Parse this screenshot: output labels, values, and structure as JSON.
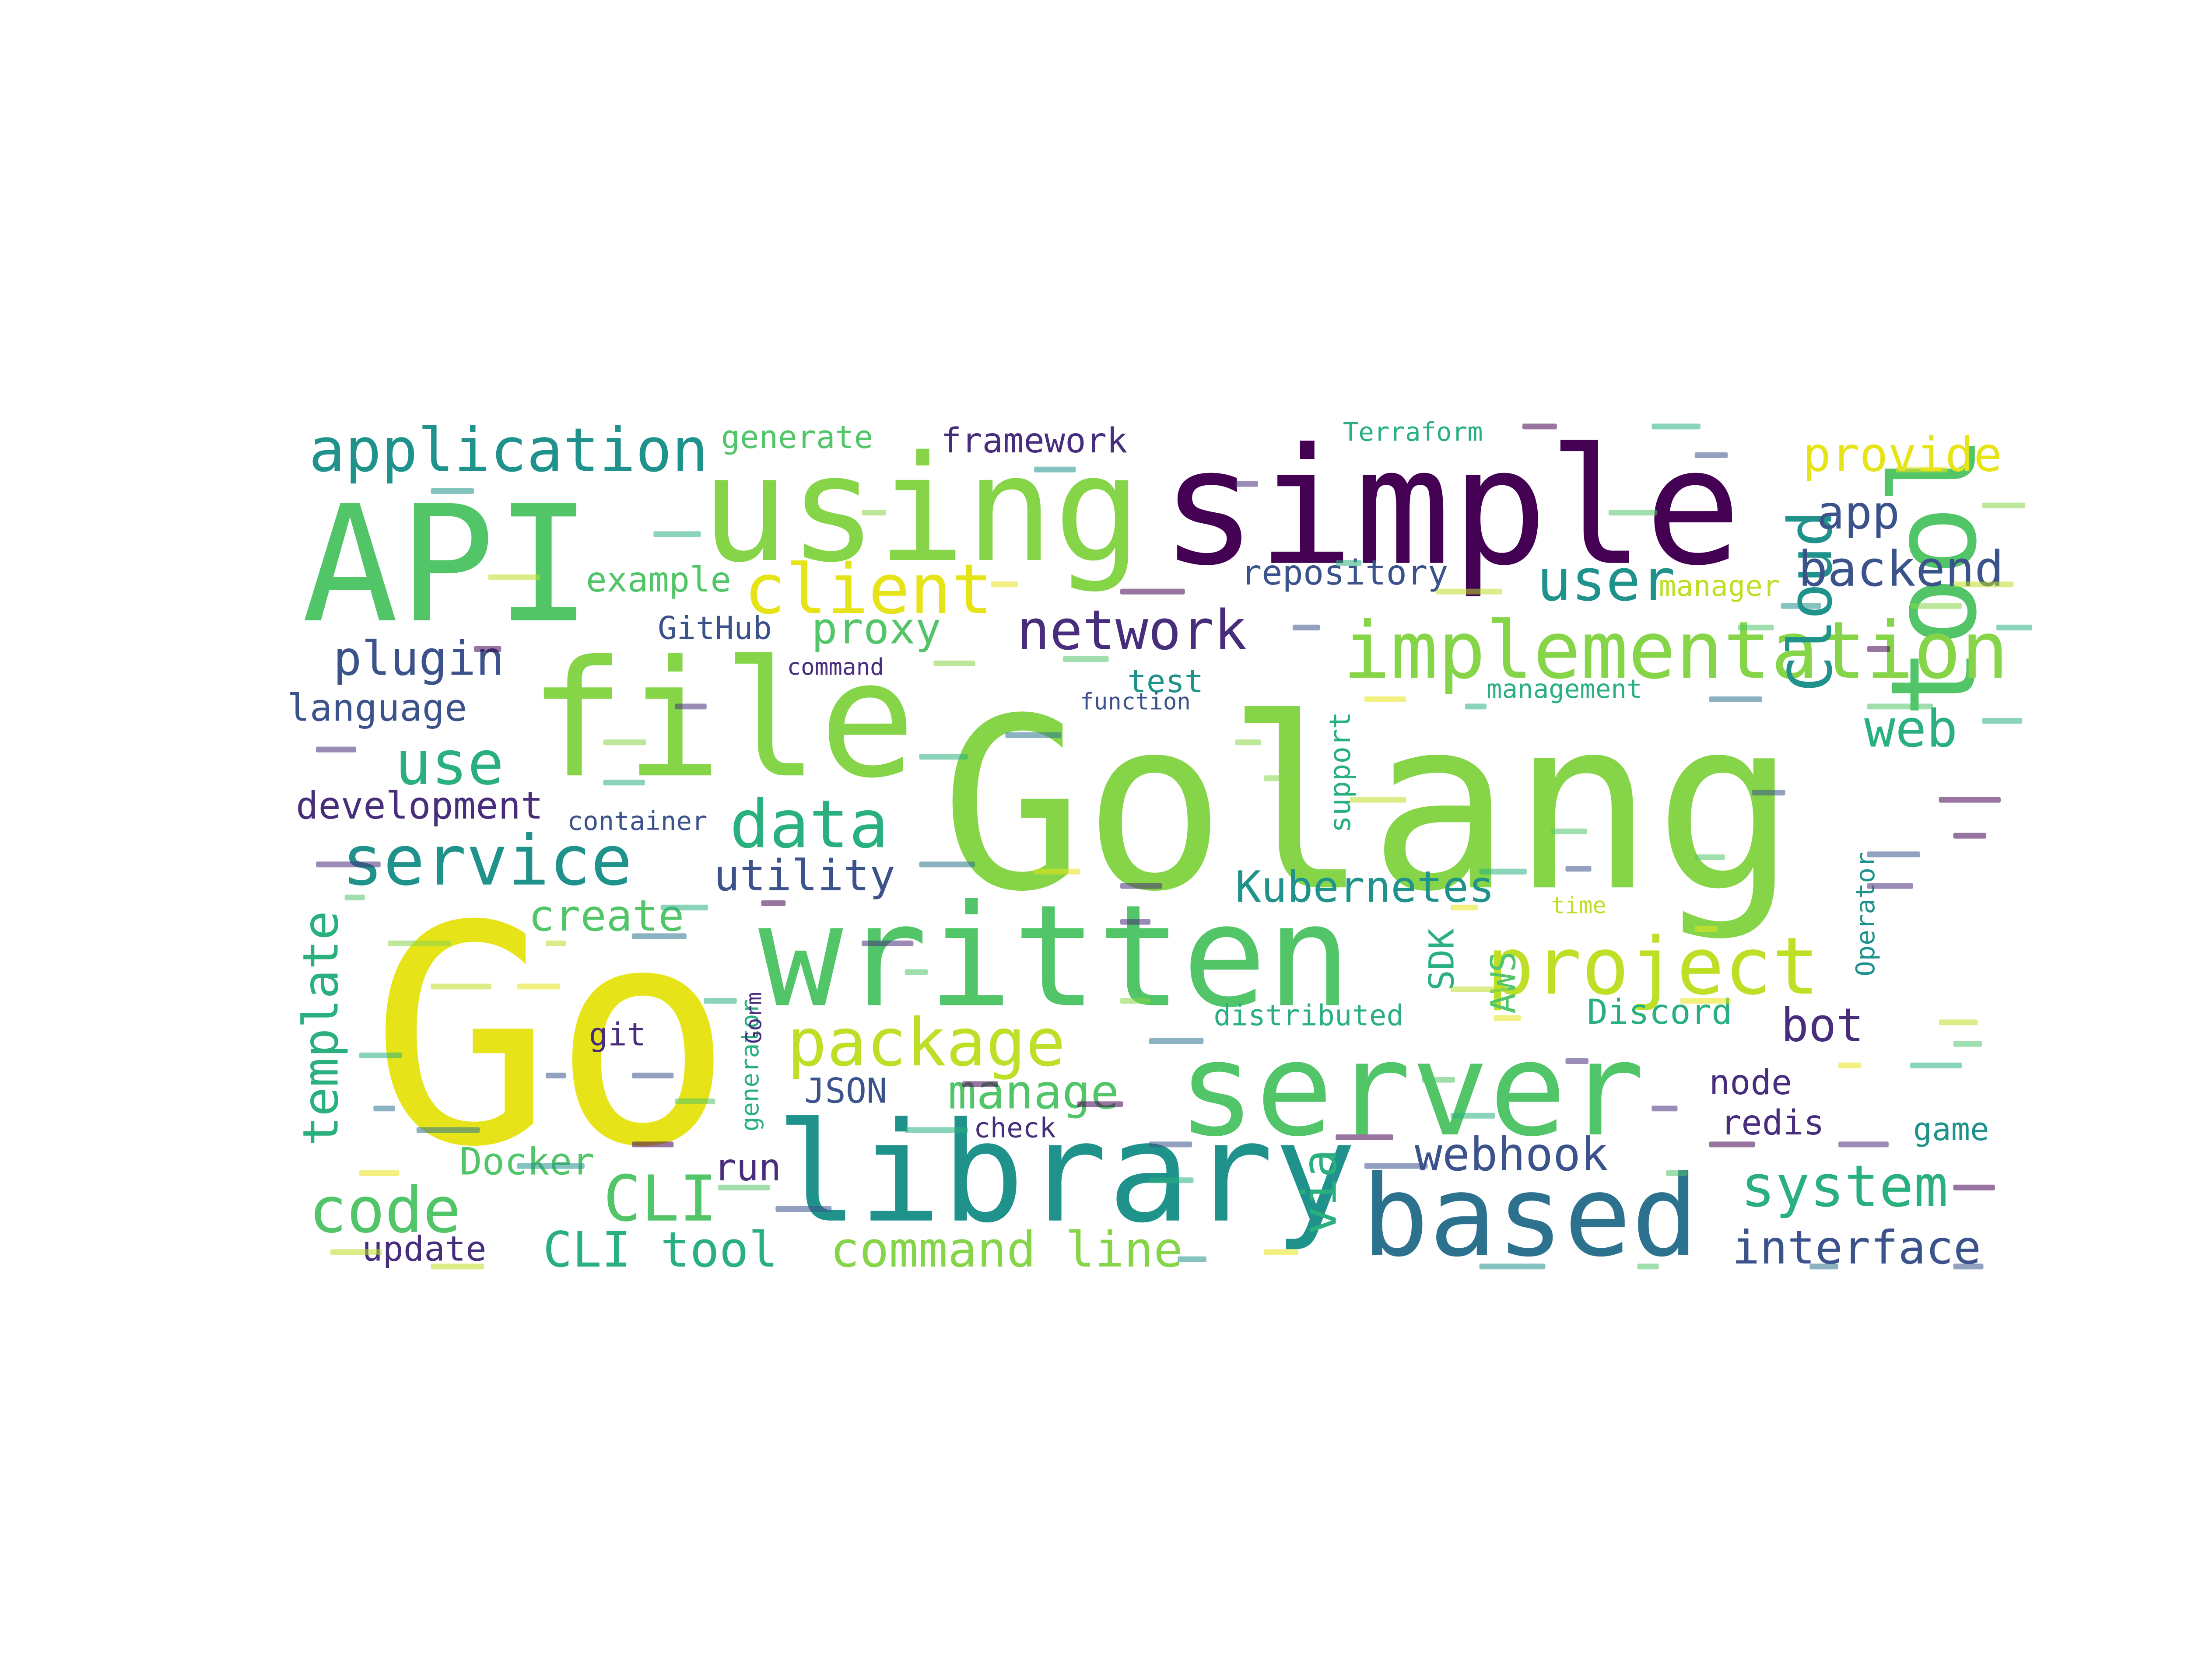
{
  "cloud": {
    "palette": {
      "yellow": "#e6e419",
      "yellowgreen": "#bddf26",
      "lightgreen": "#86d549",
      "green": "#52c569",
      "seagreen": "#2ab07f",
      "teal": "#20928c",
      "slate": "#2c728e",
      "blue": "#3b528b",
      "indigo": "#472d7b",
      "purple": "#440154"
    },
    "words": [
      {
        "text": "Golang",
        "color": "lightgreen"
      },
      {
        "text": "Go",
        "color": "yellow"
      },
      {
        "text": "simple",
        "color": "purple"
      },
      {
        "text": "using",
        "color": "lightgreen"
      },
      {
        "text": "API",
        "color": "green"
      },
      {
        "text": "file",
        "color": "lightgreen"
      },
      {
        "text": "written",
        "color": "green"
      },
      {
        "text": "server",
        "color": "green"
      },
      {
        "text": "library",
        "color": "teal"
      },
      {
        "text": "tool",
        "color": "green"
      },
      {
        "text": "based",
        "color": "slate"
      },
      {
        "text": "implementation",
        "color": "lightgreen"
      },
      {
        "text": "project",
        "color": "yellowgreen"
      },
      {
        "text": "client",
        "color": "yellow"
      },
      {
        "text": "package",
        "color": "yellowgreen"
      },
      {
        "text": "data",
        "color": "seagreen"
      },
      {
        "text": "service",
        "color": "teal"
      },
      {
        "text": "application",
        "color": "teal"
      },
      {
        "text": "network",
        "color": "indigo"
      },
      {
        "text": "Cloud",
        "color": "teal"
      },
      {
        "text": "code",
        "color": "green"
      },
      {
        "text": "CLI",
        "color": "green"
      },
      {
        "text": "system",
        "color": "seagreen"
      },
      {
        "text": "use",
        "color": "seagreen"
      },
      {
        "text": "plugin",
        "color": "blue"
      },
      {
        "text": "user",
        "color": "teal"
      },
      {
        "text": "backend",
        "color": "blue"
      },
      {
        "text": "provide",
        "color": "yellow"
      },
      {
        "text": "app",
        "color": "blue"
      },
      {
        "text": "web",
        "color": "seagreen"
      },
      {
        "text": "Kubernetes",
        "color": "teal"
      },
      {
        "text": "utility",
        "color": "blue"
      },
      {
        "text": "proxy",
        "color": "green"
      },
      {
        "text": "create",
        "color": "green"
      },
      {
        "text": "manage",
        "color": "green"
      },
      {
        "text": "CLI tool",
        "color": "seagreen"
      },
      {
        "text": "command line",
        "color": "lightgreen"
      },
      {
        "text": "interface",
        "color": "blue"
      },
      {
        "text": "webhook",
        "color": "blue"
      },
      {
        "text": "template",
        "color": "seagreen"
      },
      {
        "text": "bot",
        "color": "indigo"
      },
      {
        "text": "via",
        "color": "seagreen"
      },
      {
        "text": "language",
        "color": "blue"
      },
      {
        "text": "development",
        "color": "indigo"
      },
      {
        "text": "example",
        "color": "green"
      },
      {
        "text": "GitHub",
        "color": "blue"
      },
      {
        "text": "repository",
        "color": "blue"
      },
      {
        "text": "framework",
        "color": "indigo"
      },
      {
        "text": "generate",
        "color": "green"
      },
      {
        "text": "Terraform",
        "color": "seagreen"
      },
      {
        "text": "Discord",
        "color": "seagreen"
      },
      {
        "text": "AWS",
        "color": "green"
      },
      {
        "text": "SDK",
        "color": "seagreen"
      },
      {
        "text": "Operator",
        "color": "teal"
      },
      {
        "text": "support",
        "color": "seagreen"
      },
      {
        "text": "test",
        "color": "teal"
      },
      {
        "text": "manager",
        "color": "yellowgreen"
      },
      {
        "text": "management",
        "color": "seagreen"
      },
      {
        "text": "Docker",
        "color": "green"
      },
      {
        "text": "run",
        "color": "indigo"
      },
      {
        "text": "update",
        "color": "indigo"
      },
      {
        "text": "redis",
        "color": "indigo"
      },
      {
        "text": "node",
        "color": "indigo"
      },
      {
        "text": "game",
        "color": "teal"
      },
      {
        "text": "check",
        "color": "indigo"
      },
      {
        "text": "JSON",
        "color": "blue"
      },
      {
        "text": "generator",
        "color": "seagreen"
      },
      {
        "text": "Gorm",
        "color": "indigo"
      },
      {
        "text": "git",
        "color": "indigo"
      },
      {
        "text": "distributed",
        "color": "seagreen"
      },
      {
        "text": "container",
        "color": "blue"
      },
      {
        "text": "command",
        "color": "indigo"
      },
      {
        "text": "function",
        "color": "blue"
      },
      {
        "text": "time",
        "color": "yellowgreen"
      }
    ]
  }
}
